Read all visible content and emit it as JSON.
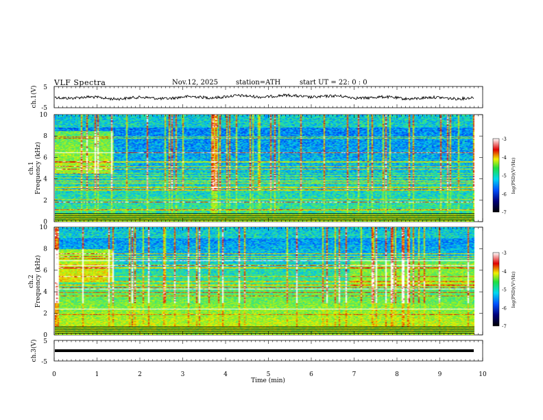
{
  "header": {
    "title": "VLF  Spectra",
    "date": "Nov.12, 2025",
    "station": "station=ATH",
    "start_ut": "start  UT  =   22: 0  : 0"
  },
  "chart_data": [
    {
      "type": "line",
      "panel": "ch1-waveform",
      "ylabel": "ch.1(V)",
      "ylim": [
        -5,
        5
      ],
      "y_ticks": [
        "5",
        "-5"
      ],
      "x_range_min": [
        0,
        9.8
      ],
      "baseline_v": 0,
      "color": "#000000"
    },
    {
      "type": "heatmap",
      "panel": "ch1-spectrogram",
      "ylabel": "Frequency (kHz)",
      "channel_label": "ch.1",
      "ylim": [
        0,
        10
      ],
      "y_ticks": [
        "0",
        "2",
        "4",
        "6",
        "8",
        "10"
      ],
      "x_range_min": [
        0,
        9.8
      ],
      "colorbar": {
        "label": "log(PSD)(V²/Hz)",
        "range": [
          -7,
          -3
        ],
        "ticks": [
          "-3",
          "-4",
          "-5",
          "-6",
          "-7"
        ]
      }
    },
    {
      "type": "heatmap",
      "panel": "ch2-spectrogram",
      "ylabel": "Frequency (kHz)",
      "channel_label": "ch.2",
      "ylim": [
        0,
        10
      ],
      "y_ticks": [
        "0",
        "2",
        "4",
        "6",
        "8",
        "10"
      ],
      "x_range_min": [
        0,
        9.8
      ],
      "colorbar": {
        "label": "log(PSD)(V²/Hz)",
        "range": [
          -7,
          -3
        ],
        "ticks": [
          "-3",
          "-4",
          "-5",
          "-6",
          "-7"
        ]
      }
    },
    {
      "type": "line",
      "panel": "ch3-waveform",
      "ylabel": "ch.3(V)",
      "ylim": [
        -5,
        5
      ],
      "y_ticks": [
        "5",
        "-5"
      ],
      "x_range_min": [
        0,
        9.8
      ],
      "baseline_v": 0,
      "color": "#000000"
    }
  ],
  "x_axis": {
    "label": "Time  (min)",
    "ticks": [
      "0",
      "1",
      "2",
      "3",
      "4",
      "5",
      "6",
      "7",
      "8",
      "9",
      "10"
    ],
    "range": [
      0,
      10
    ]
  },
  "colors": {
    "low": "#00007a",
    "mid": "#00c8e6",
    "high": "#d40000",
    "background": "#ffffff"
  }
}
